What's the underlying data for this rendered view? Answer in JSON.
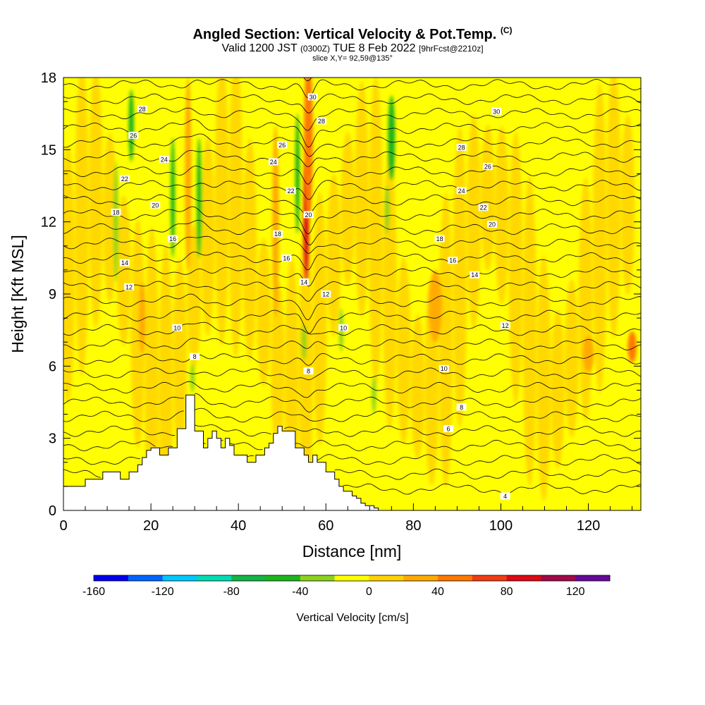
{
  "title": {
    "main": "Angled Section: Vertical Velocity & Pot.Temp.",
    "copyright": "(C)",
    "valid_prefix": "Valid 1200 JST",
    "valid_utc": "(0300Z)",
    "valid_date": "TUE 8 Feb 2022",
    "forecast": "[9hrFcst@2210z]",
    "slice": "slice X,Y= 92,59@135°"
  },
  "chart_data": {
    "type": "heatmap",
    "xlabel": "Distance [nm]",
    "ylabel": "Height [Kft MSL]",
    "xlim": [
      0,
      132
    ],
    "ylim": [
      0,
      18
    ],
    "x_ticks": [
      0,
      20,
      40,
      60,
      80,
      100,
      120
    ],
    "y_ticks": [
      0,
      3,
      6,
      9,
      12,
      15,
      18
    ],
    "colorbar": {
      "label": "Vertical Velocity [cm/s]",
      "ticks": [
        -160,
        -120,
        -80,
        -40,
        0,
        40,
        80,
        120
      ],
      "bins": [
        -160,
        -140,
        -120,
        -100,
        -80,
        -60,
        -40,
        -20,
        0,
        20,
        40,
        60,
        80,
        100,
        120,
        140
      ],
      "colors": [
        "#0000f0",
        "#0064ff",
        "#00c8ff",
        "#00dcb4",
        "#14b446",
        "#1eb41e",
        "#8cd21e",
        "#ffff00",
        "#ffd200",
        "#ffaa00",
        "#ff7800",
        "#f03c14",
        "#dc0a14",
        "#a00a46",
        "#640a96"
      ]
    },
    "terrain_profile": {
      "x": [
        0,
        5,
        5,
        9,
        9,
        13,
        13,
        15,
        15,
        17,
        17,
        18,
        18,
        19,
        19,
        20,
        20,
        22,
        22,
        24,
        24,
        26,
        26,
        28,
        28,
        30,
        30,
        32,
        32,
        33,
        33,
        34,
        34,
        35,
        35,
        36,
        36,
        37,
        37,
        38,
        38,
        39,
        39,
        42,
        42,
        44,
        44,
        46,
        46,
        47,
        47,
        48,
        48,
        49,
        49,
        50,
        50,
        53,
        53,
        55,
        55,
        56,
        56,
        57,
        57,
        58,
        58,
        60,
        60,
        62,
        62,
        63,
        63,
        64,
        64,
        66,
        66,
        67,
        67,
        68,
        68,
        69,
        69,
        71,
        71,
        72,
        72
      ],
      "y": [
        1,
        1,
        1.3,
        1.3,
        1.6,
        1.6,
        1.3,
        1.3,
        1.6,
        1.6,
        1.9,
        1.9,
        2.2,
        2.2,
        2.5,
        2.5,
        2.6,
        2.6,
        2.3,
        2.3,
        2.6,
        2.6,
        3.4,
        3.4,
        4.8,
        4.8,
        3.3,
        3.3,
        2.6,
        2.6,
        3.0,
        3.0,
        3.3,
        3.3,
        3.0,
        3.0,
        2.6,
        2.6,
        3.0,
        3.0,
        2.7,
        2.7,
        2.3,
        2.3,
        2.0,
        2.0,
        2.3,
        2.3,
        2.6,
        2.6,
        2.8,
        2.8,
        3.2,
        3.2,
        3.5,
        3.5,
        3.3,
        3.3,
        2.6,
        2.6,
        2.3,
        2.3,
        2.0,
        2.0,
        2.3,
        2.3,
        2.0,
        2.0,
        1.6,
        1.6,
        1.3,
        1.3,
        1.0,
        1.0,
        0.8,
        0.8,
        0.6,
        0.6,
        0.5,
        0.5,
        0.3,
        0.3,
        0.2,
        0.2,
        0.1,
        0.1,
        0
      ]
    },
    "updraft_cores": [
      {
        "x": 55.5,
        "y": 12.0,
        "w": 1.2,
        "h": 5.0,
        "value": 80
      },
      {
        "x": 56.0,
        "y": 15.5,
        "w": 2.0,
        "h": 7.0,
        "value": 50
      },
      {
        "x": 48.5,
        "y": 12.0,
        "w": 1.5,
        "h": 8.0,
        "value": 25
      },
      {
        "x": 28.5,
        "y": 14.0,
        "w": 1.5,
        "h": 8.0,
        "value": 25
      },
      {
        "x": 130.0,
        "y": 6.8,
        "w": 2.0,
        "h": 1.3,
        "value": 40
      },
      {
        "x": 120.0,
        "y": 6.5,
        "w": 2.5,
        "h": 1.5,
        "value": 25
      },
      {
        "x": 18.0,
        "y": 8.0,
        "w": 1.5,
        "h": 3.0,
        "value": 25
      },
      {
        "x": 85.0,
        "y": 8.5,
        "w": 3.0,
        "h": 3.0,
        "value": 25
      }
    ],
    "downdraft_streaks": [
      {
        "x": 12.0,
        "y": 12.0,
        "w": 0.9,
        "h": 5.0,
        "value": -30
      },
      {
        "x": 15.5,
        "y": 16.0,
        "w": 1.2,
        "h": 3.0,
        "value": -45
      },
      {
        "x": 25.0,
        "y": 13.0,
        "w": 0.8,
        "h": 5.0,
        "value": -45
      },
      {
        "x": 31.0,
        "y": 13.0,
        "w": 1.0,
        "h": 5.0,
        "value": -45
      },
      {
        "x": 53.5,
        "y": 14.0,
        "w": 1.0,
        "h": 5.0,
        "value": -45
      },
      {
        "x": 75.0,
        "y": 15.5,
        "w": 1.6,
        "h": 3.5,
        "value": -55
      },
      {
        "x": 74.0,
        "y": 12.5,
        "w": 0.8,
        "h": 2.0,
        "value": -30
      },
      {
        "x": 63.5,
        "y": 7.5,
        "w": 0.8,
        "h": 1.8,
        "value": -30
      },
      {
        "x": 55.0,
        "y": 7.0,
        "w": 0.8,
        "h": 1.5,
        "value": -30
      },
      {
        "x": 29.5,
        "y": 5.5,
        "w": 0.6,
        "h": 1.2,
        "value": -30
      },
      {
        "x": 71.0,
        "y": 4.8,
        "w": 0.6,
        "h": 1.5,
        "value": -30
      }
    ],
    "theta_contour_labels": [
      {
        "x": 57,
        "y": 17.2,
        "text": "30"
      },
      {
        "x": 18,
        "y": 16.7,
        "text": "28"
      },
      {
        "x": 59,
        "y": 16.2,
        "text": "28"
      },
      {
        "x": 99,
        "y": 16.6,
        "text": "30"
      },
      {
        "x": 16,
        "y": 15.6,
        "text": "26"
      },
      {
        "x": 50,
        "y": 15.2,
        "text": "26"
      },
      {
        "x": 91,
        "y": 15.1,
        "text": "28"
      },
      {
        "x": 23,
        "y": 14.6,
        "text": "24"
      },
      {
        "x": 48,
        "y": 14.5,
        "text": "24"
      },
      {
        "x": 97,
        "y": 14.3,
        "text": "26"
      },
      {
        "x": 14,
        "y": 13.8,
        "text": "22"
      },
      {
        "x": 52,
        "y": 13.3,
        "text": "22"
      },
      {
        "x": 91,
        "y": 13.3,
        "text": "24"
      },
      {
        "x": 21,
        "y": 12.7,
        "text": "20"
      },
      {
        "x": 56,
        "y": 12.3,
        "text": "20"
      },
      {
        "x": 96,
        "y": 12.6,
        "text": "22"
      },
      {
        "x": 12,
        "y": 12.4,
        "text": "18"
      },
      {
        "x": 98,
        "y": 11.9,
        "text": "20"
      },
      {
        "x": 25,
        "y": 11.3,
        "text": "16"
      },
      {
        "x": 49,
        "y": 11.5,
        "text": "18"
      },
      {
        "x": 86,
        "y": 11.3,
        "text": "18"
      },
      {
        "x": 14,
        "y": 10.3,
        "text": "14"
      },
      {
        "x": 51,
        "y": 10.5,
        "text": "16"
      },
      {
        "x": 89,
        "y": 10.4,
        "text": "16"
      },
      {
        "x": 55,
        "y": 9.5,
        "text": "14"
      },
      {
        "x": 94,
        "y": 9.8,
        "text": "14"
      },
      {
        "x": 15,
        "y": 9.3,
        "text": "12"
      },
      {
        "x": 60,
        "y": 9.0,
        "text": "12"
      },
      {
        "x": 26,
        "y": 7.6,
        "text": "10"
      },
      {
        "x": 64,
        "y": 7.6,
        "text": "10"
      },
      {
        "x": 101,
        "y": 7.7,
        "text": "12"
      },
      {
        "x": 30,
        "y": 6.4,
        "text": "8"
      },
      {
        "x": 56,
        "y": 5.8,
        "text": "8"
      },
      {
        "x": 87,
        "y": 5.9,
        "text": "10"
      },
      {
        "x": 91,
        "y": 4.3,
        "text": "8"
      },
      {
        "x": 88,
        "y": 3.4,
        "text": "6"
      },
      {
        "x": 101,
        "y": 0.6,
        "text": "4"
      }
    ]
  }
}
